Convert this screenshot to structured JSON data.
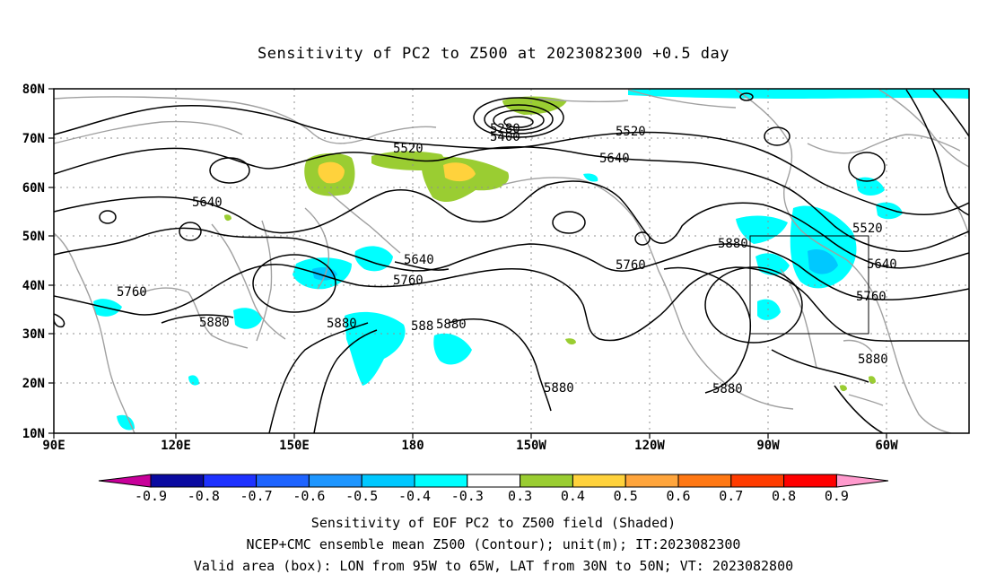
{
  "title": "Sensitivity of PC2 to Z500 at 2023082300 +0.5 day",
  "map": {
    "lat_ticks": [
      "80N",
      "70N",
      "60N",
      "50N",
      "40N",
      "30N",
      "20N",
      "10N"
    ],
    "lon_ticks": [
      "90E",
      "120E",
      "150E",
      "180",
      "150W",
      "120W",
      "90W",
      "60W"
    ],
    "contour_labels": [
      {
        "text": "5280"
      },
      {
        "text": "5400"
      },
      {
        "text": "5520"
      },
      {
        "text": "5520"
      },
      {
        "text": "5640"
      },
      {
        "text": "5640"
      },
      {
        "text": "5640"
      },
      {
        "text": "5640"
      },
      {
        "text": "5520"
      },
      {
        "text": "5760"
      },
      {
        "text": "5760"
      },
      {
        "text": "5760"
      },
      {
        "text": "5760"
      },
      {
        "text": "5880"
      },
      {
        "text": "5880"
      },
      {
        "text": "588"
      },
      {
        "text": "5880"
      },
      {
        "text": "5880"
      },
      {
        "text": "5880"
      },
      {
        "text": "5880"
      },
      {
        "text": "5880"
      }
    ],
    "valid_box": {
      "lon_from": "95W",
      "lon_to": "65W",
      "lat_from": "30N",
      "lat_to": "50N"
    }
  },
  "colorbar": {
    "labels": [
      "-0.9",
      "-0.8",
      "-0.7",
      "-0.6",
      "-0.5",
      "-0.4",
      "-0.3",
      "0.3",
      "0.4",
      "0.5",
      "0.6",
      "0.7",
      "0.8",
      "0.9"
    ],
    "colors": [
      "#0a0aa0",
      "#1e32ff",
      "#1e64ff",
      "#1e96ff",
      "#00c8ff",
      "#00ffff",
      "#ffffff",
      "#9acd32",
      "#ffd23c",
      "#ffa53c",
      "#ff7814",
      "#ff3c00",
      "#ff0000"
    ],
    "end_low": "#c8009a",
    "end_high": "#ff9acd"
  },
  "footer": {
    "line1": "Sensitivity of EOF PC2 to Z500 field (Shaded)",
    "line2": "NCEP+CMC ensemble mean Z500 (Contour); unit(m); IT:2023082300",
    "line3": "Valid area (box): LON from 95W to 65W, LAT from 30N to 50N; VT: 2023082800"
  }
}
